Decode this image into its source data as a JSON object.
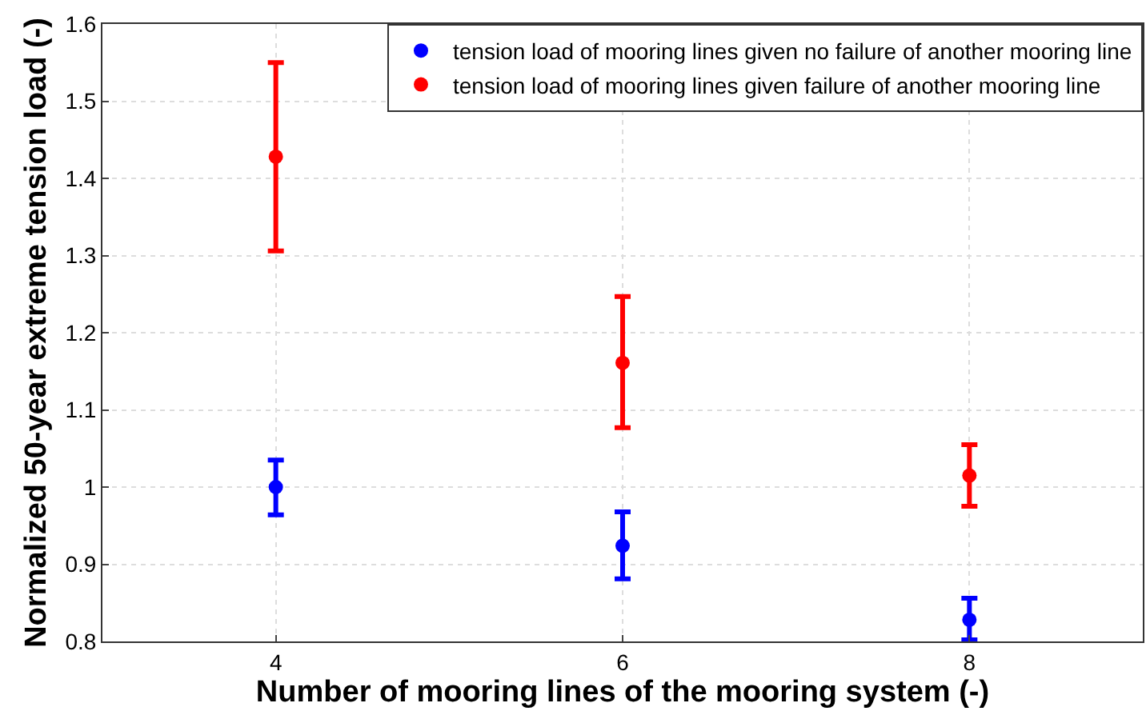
{
  "chart_data": {
    "type": "scatter",
    "xlabel": "Number of mooring lines of the mooring system (-)",
    "ylabel": "Normalized 50-year extreme tension load (-)",
    "x": [
      4,
      6,
      8
    ],
    "series": [
      {
        "name": "tension load of mooring lines given no failure of another mooring line",
        "color": "#0000ff",
        "values": [
          1.0,
          0.924,
          0.828
        ],
        "errors": [
          [
            0.964,
            1.035
          ],
          [
            0.881,
            0.968
          ],
          [
            0.802,
            0.856
          ]
        ]
      },
      {
        "name": "tension load of mooring lines given failure of another mooring line",
        "color": "#ff0000",
        "values": [
          1.428,
          1.161,
          1.015
        ],
        "errors": [
          [
            1.306,
            1.55
          ],
          [
            1.077,
            1.247
          ],
          [
            0.975,
            1.055
          ]
        ]
      }
    ],
    "xlim": [
      3,
      9
    ],
    "xticks": [
      4,
      6,
      8
    ],
    "ylim": [
      0.8,
      1.6
    ],
    "yticks": [
      0.8,
      0.9,
      1,
      1.1,
      1.2,
      1.3,
      1.4,
      1.5,
      1.6
    ],
    "grid": true,
    "legend": "top right",
    "marker": "circle"
  }
}
